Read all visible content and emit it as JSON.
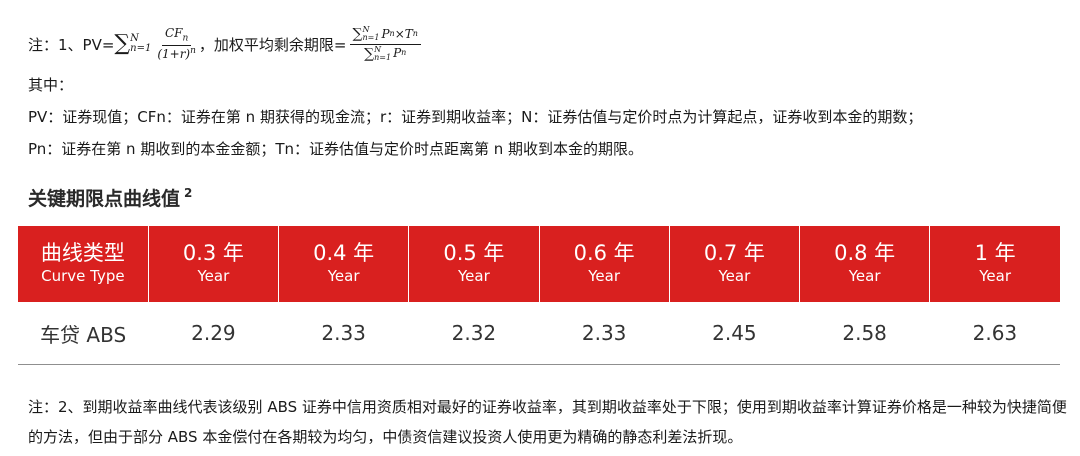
{
  "note1": {
    "prefix": "注：1、PV=",
    "pv_sum_upper": "N",
    "pv_sum_lower": "n=1",
    "pv_numerator": "CF",
    "pv_numerator_sub": "n",
    "pv_denominator": "(1+r)",
    "pv_denominator_sup": "n",
    "pv_suffix": "，加权平均剩余期限=",
    "wal_num_upper": "N",
    "wal_num_lower": "n=1",
    "wal_num_term": "P",
    "wal_num_sub": "n",
    "wal_times": "×T",
    "wal_times_sub": "n",
    "wal_den_upper": "N",
    "wal_den_lower": "n=1",
    "wal_den_term": "P",
    "wal_den_sub": "n"
  },
  "where_label": "其中：",
  "def_line1": "PV：证券现值；CFn：证券在第 n 期获得的现金流；r：证券到期收益率；N：证券估值与定价时点为计算起点，证券收到本金的期数；",
  "def_line2": "Pn：证券在第 n 期收到的本金金额；Tn：证券估值与定价时点距离第 n 期收到本金的期限。",
  "section": {
    "title": "关键期限点曲线值",
    "footnote_mark": "2"
  },
  "table": {
    "header": [
      {
        "cn": "曲线类型",
        "en": "Curve Type"
      },
      {
        "cn": "0.3 年",
        "en": "Year"
      },
      {
        "cn": "0.4 年",
        "en": "Year"
      },
      {
        "cn": "0.5 年",
        "en": "Year"
      },
      {
        "cn": "0.6 年",
        "en": "Year"
      },
      {
        "cn": "0.7 年",
        "en": "Year"
      },
      {
        "cn": "0.8 年",
        "en": "Year"
      },
      {
        "cn": "1 年",
        "en": "Year"
      }
    ],
    "row": [
      "车贷 ABS",
      "2.29",
      "2.33",
      "2.32",
      "2.33",
      "2.45",
      "2.58",
      "2.63"
    ]
  },
  "note2": "注：2、到期收益率曲线代表该级别 ABS 证券中信用资质相对最好的证券收益率，其到期收益率处于下限；使用到期收益率计算证券价格是一种较为快捷简便的方法，但由于部分 ABS 本金偿付在各期较为均匀，中债资信建议投资人使用更为精确的静态利差法折现。",
  "colors": {
    "header_red": "#d9201f",
    "header_text": "#ffffff",
    "rule": "#8f8f8f"
  }
}
